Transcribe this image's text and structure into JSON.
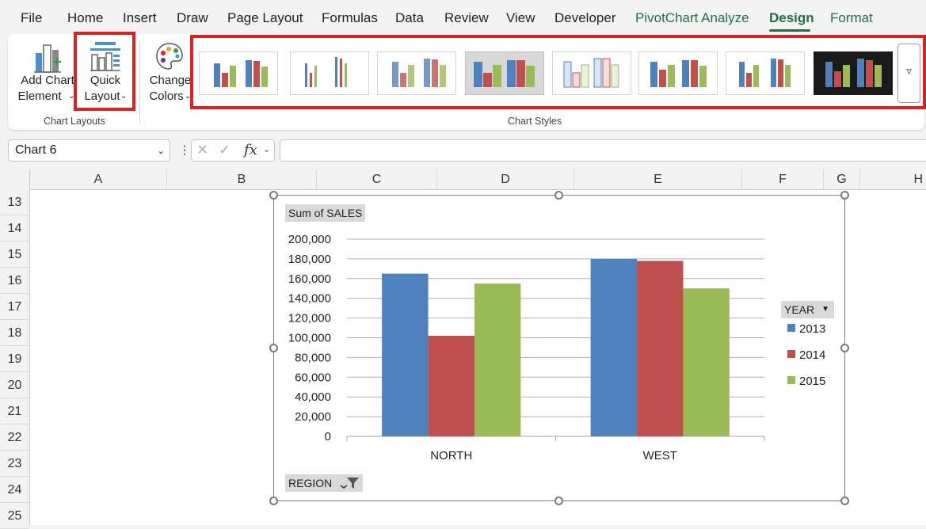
{
  "tabs": [
    "File",
    "Home",
    "Insert",
    "Draw",
    "Page Layout",
    "Formulas",
    "Data",
    "Review",
    "View",
    "Developer",
    "PivotChart Analyze",
    "Design",
    "Format"
  ],
  "ribbon": {
    "add_chart_element": {
      "line1": "Add Chart",
      "line2": "Element"
    },
    "quick_layout": {
      "line1": "Quick",
      "line2": "Layout"
    },
    "change_colors": {
      "line1": "Change",
      "line2": "Colors"
    },
    "group_chart_layouts": "Chart Layouts",
    "group_chart_styles": "Chart Styles"
  },
  "formula_bar": {
    "name_box": "Chart 6",
    "fx": "fx",
    "formula": ""
  },
  "columns": [
    "A",
    "B",
    "C",
    "D",
    "E",
    "F",
    "G",
    "H"
  ],
  "rows": [
    "13",
    "14",
    "15",
    "16",
    "17",
    "18",
    "19",
    "20",
    "21",
    "22",
    "23",
    "24",
    "25"
  ],
  "chart": {
    "value_field_button": "Sum of SALES",
    "legend_field_button": "YEAR",
    "axis_field_button": "REGION"
  },
  "chart_data": {
    "type": "bar",
    "categories": [
      "NORTH",
      "WEST"
    ],
    "series": [
      {
        "name": "2013",
        "color": "#4f81bd",
        "values": [
          165000,
          180000
        ]
      },
      {
        "name": "2014",
        "color": "#c0504d",
        "values": [
          102000,
          178000
        ]
      },
      {
        "name": "2015",
        "color": "#9bbb59",
        "values": [
          155000,
          150000
        ]
      }
    ],
    "ylim": [
      0,
      200000
    ],
    "y_ticks": [
      "200,000",
      "180,000",
      "160,000",
      "140,000",
      "120,000",
      "100,000",
      "80,000",
      "60,000",
      "40,000",
      "20,000",
      "0"
    ],
    "grid": true,
    "legend_position": "right"
  }
}
